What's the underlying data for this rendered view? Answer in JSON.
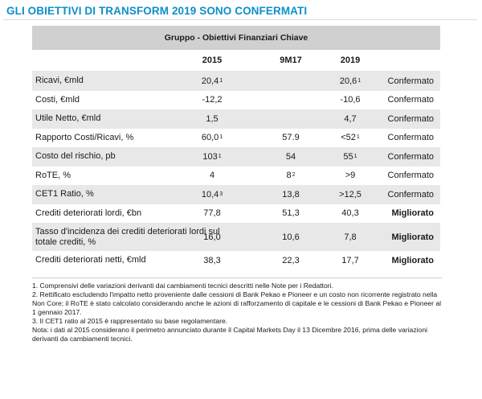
{
  "title": "GLI OBIETTIVI DI TRANSFORM 2019 SONO CONFERMATI",
  "table": {
    "group_header": "Gruppo - Obiettivi Finanziari Chiave",
    "columns": [
      "2015",
      "9M17",
      "2019"
    ],
    "rows": [
      {
        "label": "Ricavi, €mld",
        "v2015": "20,4",
        "n2015": "1",
        "v9m17": "",
        "n9m17": "",
        "v2019": "20,6",
        "n2019": "1",
        "status": "Confermato",
        "bold": false
      },
      {
        "label": "Costi, €mld",
        "v2015": "-12,2",
        "n2015": "",
        "v9m17": "",
        "n9m17": "",
        "v2019": "-10,6",
        "n2019": "",
        "status": "Confermato",
        "bold": false
      },
      {
        "label": "Utile Netto, €mld",
        "v2015": "1,5",
        "n2015": "",
        "v9m17": "",
        "n9m17": "",
        "v2019": "4,7",
        "n2019": "",
        "status": "Confermato",
        "bold": false
      },
      {
        "label": "Rapporto Costi/Ricavi, %",
        "v2015": "60,0",
        "n2015": "1",
        "v9m17": "57.9",
        "n9m17": "",
        "v2019": "<52",
        "n2019": "1",
        "status": "Confermato",
        "bold": false
      },
      {
        "label": "Costo del rischio, pb",
        "v2015": "103",
        "n2015": "1",
        "v9m17": "54",
        "n9m17": "",
        "v2019": "55",
        "n2019": "1",
        "status": "Confermato",
        "bold": false
      },
      {
        "label": "RoTE, %",
        "v2015": "4",
        "n2015": "",
        "v9m17": "8",
        "n9m17": "2",
        "v2019": ">9",
        "n2019": "",
        "status": "Confermato",
        "bold": false
      },
      {
        "label": "CET1 Ratio, %",
        "v2015": "10,4",
        "n2015": "3",
        "v9m17": "13,8",
        "n9m17": "",
        "v2019": ">12,5",
        "n2019": "",
        "status": "Confermato",
        "bold": false
      },
      {
        "label": "Crediti deteriorati lordi, €bn",
        "v2015": "77,8",
        "n2015": "",
        "v9m17": "51,3",
        "n9m17": "",
        "v2019": "40,3",
        "n2019": "",
        "status": "Migliorato",
        "bold": true
      },
      {
        "label": "Tasso d'incidenza dei crediti deteriorati lordi sul totale crediti, %",
        "v2015": "16,0",
        "n2015": "",
        "v9m17": "10,6",
        "n9m17": "",
        "v2019": "7,8",
        "n2019": "",
        "status": "Migliorato",
        "bold": true
      },
      {
        "label": "Crediti deteriorati netti, €mld",
        "v2015": "38,3",
        "n2015": "",
        "v9m17": "22,3",
        "n9m17": "",
        "v2019": "17,7",
        "n2019": "",
        "status": "Migliorato",
        "bold": true
      }
    ]
  },
  "notes": [
    "1. Comprensivi delle variazioni derivanti dai cambiamenti tecnici descritti nelle Note per i Redattori.",
    "2. Rettificato escludendo l'impatto netto proveniente dalle cessioni di Bank Pekao e Pioneer e un costo non ricorrente registrato nella Non Core; il RoTE è stato calcolato considerando anche le azioni di rafforzamento di capitale e le cessioni di Bank Pekao e Pioneer al 1 gennaio 2017.",
    "3. Il CET1 ratio al 2015 è rappresentato su base regolamentare.",
    "Nota: i dati al 2015 considerano il perimetro annunciato durante il Capital Markets Day il 13 Dicembre 2016, prima delle variazioni derivanti da cambiamenti tecnici."
  ]
}
